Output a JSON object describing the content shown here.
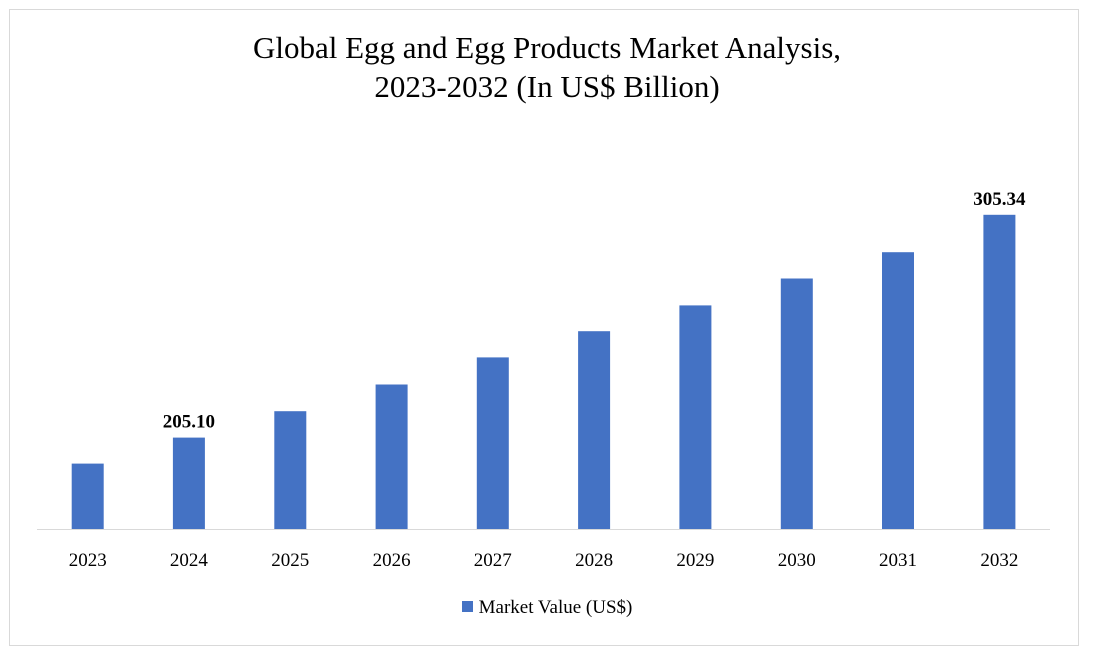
{
  "chart_data": {
    "type": "bar",
    "title_line1": "Global Egg and Egg Products Market Analysis,",
    "title_line2": "2023-2032 (In US$ Billion)",
    "categories": [
      "2023",
      "2024",
      "2025",
      "2026",
      "2027",
      "2028",
      "2029",
      "2030",
      "2031",
      "2032"
    ],
    "series": [
      {
        "name": "Market Value (US$)",
        "color": "#4472c4",
        "values": [
          193.4,
          205.1,
          217.0,
          229.0,
          241.2,
          253.0,
          264.6,
          276.7,
          288.5,
          305.34
        ]
      }
    ],
    "data_labels": [
      {
        "category": "2024",
        "text": "205.10"
      },
      {
        "category": "2032",
        "text": "305.34"
      }
    ],
    "ylim": [
      164,
      312
    ],
    "grid": false,
    "legend_position": "bottom",
    "xlabel": "",
    "ylabel": ""
  }
}
